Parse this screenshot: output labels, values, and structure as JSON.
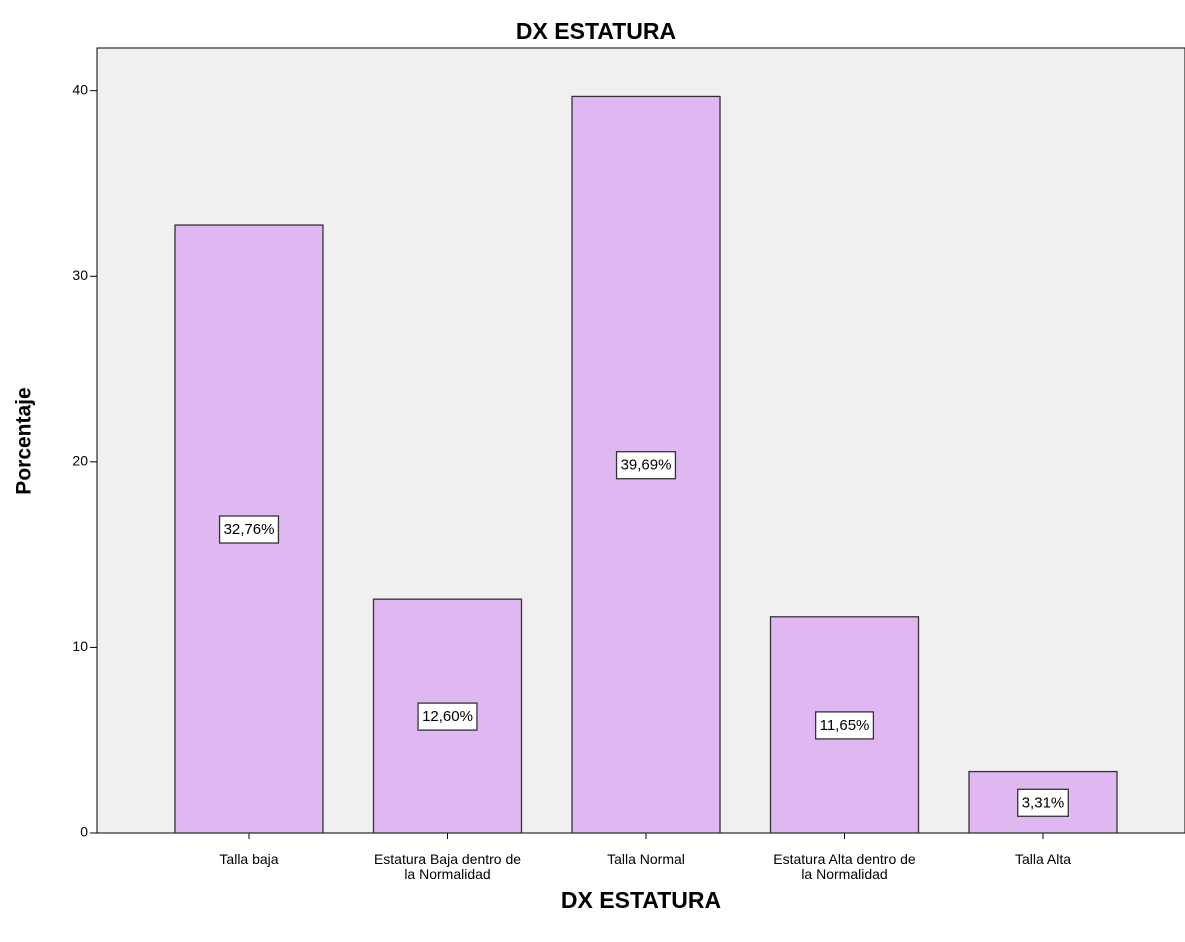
{
  "chart_data": {
    "type": "bar",
    "title": "DX ESTATURA",
    "x_label": "DX ESTATURA",
    "y_label": "Porcentaje",
    "categories": [
      "Talla baja",
      "Estatura Baja dentro de la Normalidad",
      "Talla Normal",
      "Estatura Alta dentro de la Normalidad",
      "Talla Alta"
    ],
    "values": [
      32.76,
      12.6,
      39.69,
      11.65,
      3.31
    ],
    "value_labels": [
      "32,76%",
      "12,60%",
      "39,69%",
      "11,65%",
      "3,31%"
    ],
    "color": "#dfb8f2",
    "ylim": [
      0,
      42.3
    ],
    "yticks": [
      0,
      10,
      20,
      30,
      40
    ]
  }
}
